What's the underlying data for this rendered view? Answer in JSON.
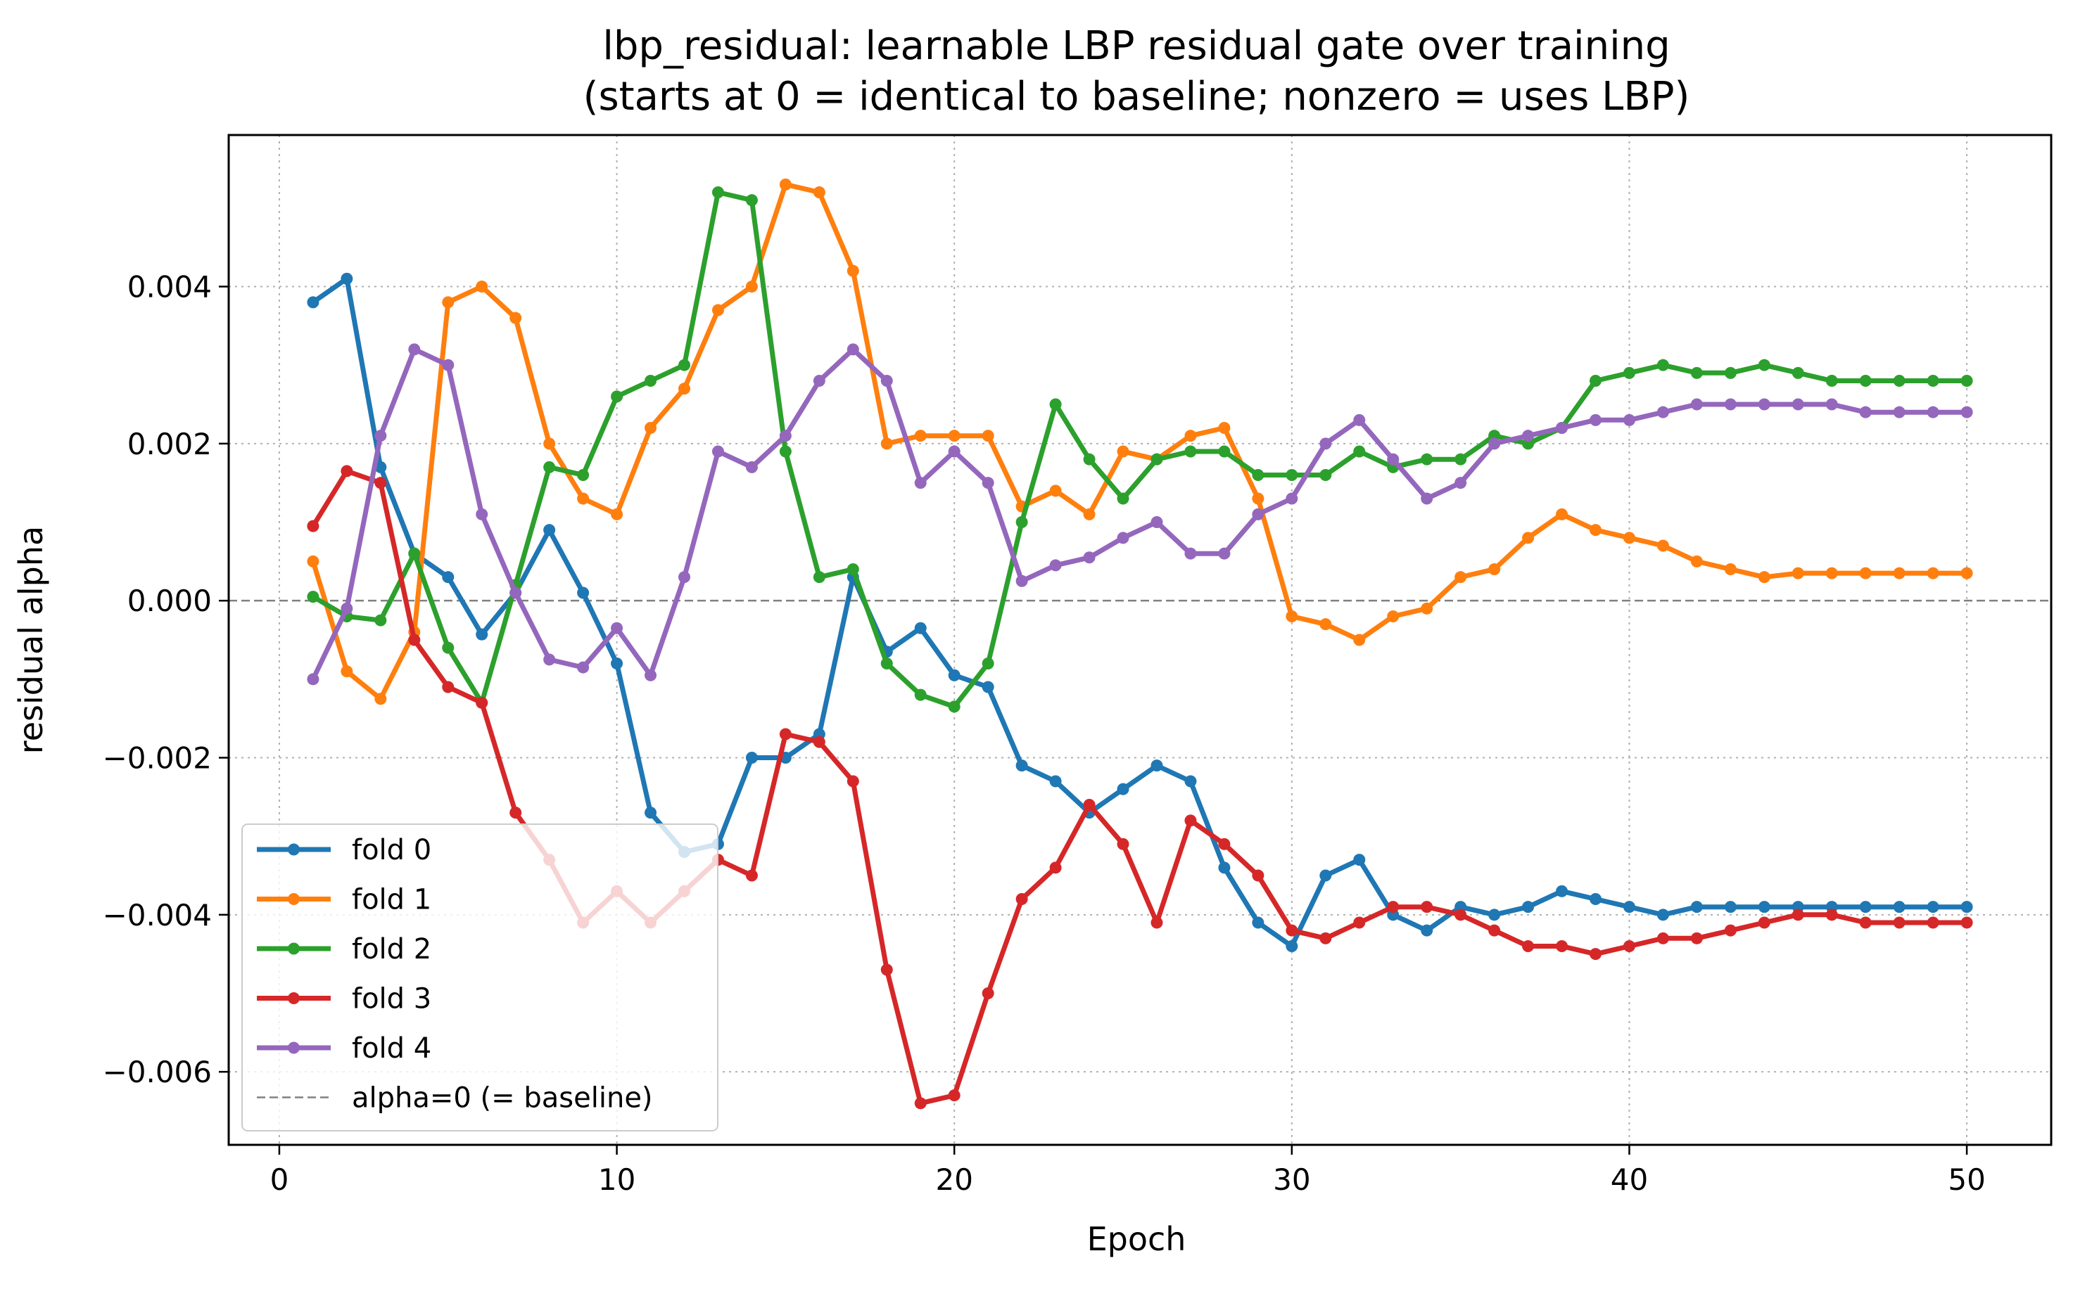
{
  "chart_data": {
    "type": "line",
    "title": "lbp_residual: learnable LBP residual gate over training",
    "subtitle": "(starts at 0 = identical to baseline; nonzero = uses LBP)",
    "xlabel": "Epoch",
    "ylabel": "residual alpha",
    "xlim": [
      -1.5,
      52.5
    ],
    "ylim": [
      -0.00693,
      0.00593
    ],
    "x_ticks": [
      0,
      10,
      20,
      30,
      40,
      50
    ],
    "y_ticks": [
      0.004,
      0.002,
      0.0,
      -0.002,
      -0.004,
      -0.006
    ],
    "y_tick_labels": [
      "0.004",
      "0.002",
      "0.000",
      "−0.002",
      "−0.004",
      "−0.006"
    ],
    "grid": true,
    "legend_position": "lower-left",
    "reference_line": {
      "y": 0,
      "label": "alpha=0 (= baseline)",
      "color": "#808080",
      "style": "dashed"
    },
    "x": [
      1,
      2,
      3,
      4,
      5,
      6,
      7,
      8,
      9,
      10,
      11,
      12,
      13,
      14,
      15,
      16,
      17,
      18,
      19,
      20,
      21,
      22,
      23,
      24,
      25,
      26,
      27,
      28,
      29,
      30,
      31,
      32,
      33,
      34,
      35,
      36,
      37,
      38,
      39,
      40,
      41,
      42,
      43,
      44,
      45,
      46,
      47,
      48,
      49,
      50
    ],
    "series": [
      {
        "name": "fold 0",
        "color": "#1f77b4",
        "values": [
          0.0038,
          0.0041,
          0.0017,
          0.0006,
          0.0003,
          -0.00043,
          0.0001,
          0.0009,
          0.0001,
          -0.0008,
          -0.0027,
          -0.0032,
          -0.0031,
          -0.002,
          -0.002,
          -0.0017,
          0.0003,
          -0.00065,
          -0.00035,
          -0.00095,
          -0.0011,
          -0.0021,
          -0.0023,
          -0.0027,
          -0.0024,
          -0.0021,
          -0.0023,
          -0.0034,
          -0.0041,
          -0.0044,
          -0.0035,
          -0.0033,
          -0.004,
          -0.0042,
          -0.0039,
          -0.004,
          -0.0039,
          -0.0037,
          -0.0038,
          -0.0039,
          -0.004,
          -0.0039,
          -0.0039,
          -0.0039,
          -0.0039,
          -0.0039,
          -0.0039,
          -0.0039,
          -0.0039,
          -0.0039
        ]
      },
      {
        "name": "fold 1",
        "color": "#ff7f0e",
        "values": [
          0.0005,
          -0.0009,
          -0.00125,
          -0.0004,
          0.0038,
          0.004,
          0.0036,
          0.002,
          0.0013,
          0.0011,
          0.0022,
          0.0027,
          0.0037,
          0.004,
          0.0053,
          0.0052,
          0.0042,
          0.002,
          0.0021,
          0.0021,
          0.0021,
          0.0012,
          0.0014,
          0.0011,
          0.0019,
          0.0018,
          0.0021,
          0.0022,
          0.0013,
          -0.0002,
          -0.0003,
          -0.0005,
          -0.0002,
          -0.0001,
          0.0003,
          0.0004,
          0.0008,
          0.0011,
          0.0009,
          0.0008,
          0.0007,
          0.0005,
          0.0004,
          0.0003,
          0.00035,
          0.00035,
          0.00035,
          0.00035,
          0.00035,
          0.00035
        ]
      },
      {
        "name": "fold 2",
        "color": "#2ca02c",
        "values": [
          5e-05,
          -0.0002,
          -0.00025,
          0.0006,
          -0.0006,
          -0.0013,
          0.0002,
          0.0017,
          0.0016,
          0.0026,
          0.0028,
          0.003,
          0.0052,
          0.0051,
          0.0019,
          0.0003,
          0.0004,
          -0.0008,
          -0.0012,
          -0.00135,
          -0.0008,
          0.001,
          0.0025,
          0.0018,
          0.0013,
          0.0018,
          0.0019,
          0.0019,
          0.0016,
          0.0016,
          0.0016,
          0.0019,
          0.0017,
          0.0018,
          0.0018,
          0.0021,
          0.002,
          0.0022,
          0.0028,
          0.0029,
          0.003,
          0.0029,
          0.0029,
          0.003,
          0.0029,
          0.0028,
          0.0028,
          0.0028,
          0.0028,
          0.0028
        ]
      },
      {
        "name": "fold 3",
        "color": "#d62728",
        "values": [
          0.00095,
          0.00165,
          0.0015,
          -0.0005,
          -0.0011,
          -0.0013,
          -0.0027,
          -0.0033,
          -0.0041,
          -0.0037,
          -0.0041,
          -0.0037,
          -0.0033,
          -0.0035,
          -0.0017,
          -0.0018,
          -0.0023,
          -0.0047,
          -0.0064,
          -0.0063,
          -0.005,
          -0.0038,
          -0.0034,
          -0.0026,
          -0.0031,
          -0.0041,
          -0.0028,
          -0.0031,
          -0.0035,
          -0.0042,
          -0.0043,
          -0.0041,
          -0.0039,
          -0.0039,
          -0.004,
          -0.0042,
          -0.0044,
          -0.0044,
          -0.0045,
          -0.0044,
          -0.0043,
          -0.0043,
          -0.0042,
          -0.0041,
          -0.004,
          -0.004,
          -0.0041,
          -0.0041,
          -0.0041,
          -0.0041
        ]
      },
      {
        "name": "fold 4",
        "color": "#9467bd",
        "values": [
          -0.001,
          -0.0001,
          0.0021,
          0.0032,
          0.003,
          0.0011,
          0.0001,
          -0.00075,
          -0.00085,
          -0.00035,
          -0.00095,
          0.0003,
          0.0019,
          0.0017,
          0.0021,
          0.0028,
          0.0032,
          0.0028,
          0.0015,
          0.0019,
          0.0015,
          0.00025,
          0.00045,
          0.00055,
          0.0008,
          0.001,
          0.0006,
          0.0006,
          0.0011,
          0.0013,
          0.002,
          0.0023,
          0.0018,
          0.0013,
          0.0015,
          0.002,
          0.0021,
          0.0022,
          0.0023,
          0.0023,
          0.0024,
          0.0025,
          0.0025,
          0.0025,
          0.0025,
          0.0025,
          0.0024,
          0.0024,
          0.0024,
          0.0024
        ]
      }
    ]
  }
}
